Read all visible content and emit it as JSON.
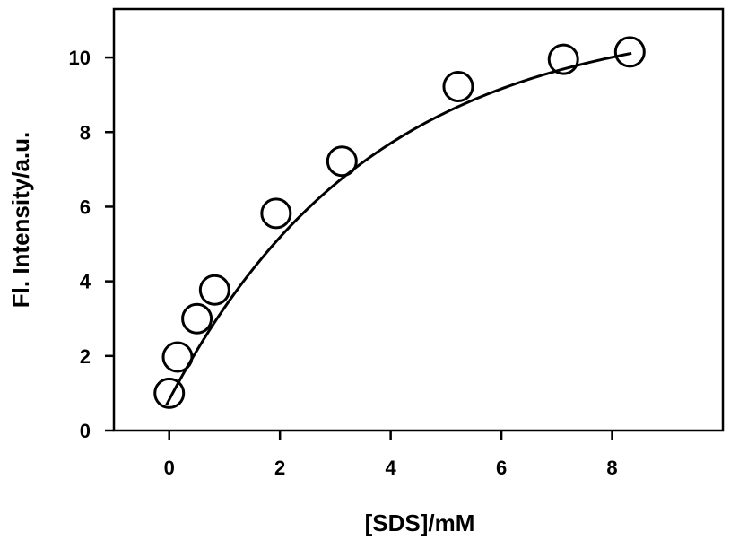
{
  "chart_data": {
    "type": "scatter",
    "title": "",
    "xlabel": "[SDS]/mM",
    "ylabel": "Fl. Intensity/a.u.",
    "xlim": [
      -1,
      10
    ],
    "ylim": [
      0,
      11.3
    ],
    "xticks": [
      0,
      2,
      4,
      6,
      8
    ],
    "yticks": [
      0,
      2,
      4,
      6,
      8,
      10
    ],
    "grid": false,
    "legend": "none",
    "marker": "open-circle",
    "series": [
      {
        "points": [
          {
            "x": 0.0,
            "y": 1.0
          },
          {
            "x": 0.15,
            "y": 1.97
          },
          {
            "x": 0.5,
            "y": 3.0
          },
          {
            "x": 0.82,
            "y": 3.77
          },
          {
            "x": 1.93,
            "y": 5.82
          },
          {
            "x": 3.12,
            "y": 7.22
          },
          {
            "x": 5.22,
            "y": 9.22
          },
          {
            "x": 7.12,
            "y": 9.95
          },
          {
            "x": 8.32,
            "y": 10.15
          }
        ]
      }
    ],
    "fit_curve": {
      "model": "exponential-rise",
      "y0": 0.83,
      "amplitude": 10.34,
      "rate": 0.273,
      "x_range": [
        -0.05,
        8.35
      ]
    }
  }
}
